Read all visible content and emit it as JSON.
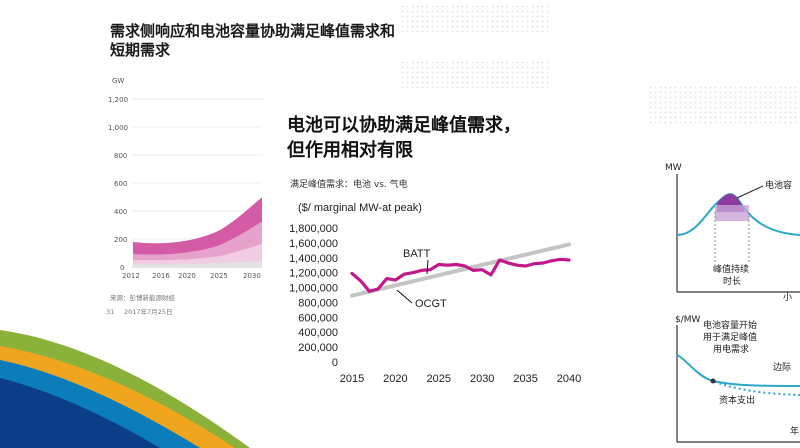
{
  "background_slide": {
    "title": "需求侧响应和电池容量协助满足峰值需求和短期需求",
    "left_chart": {
      "unit": "GW",
      "y_ticks": [
        "1,200",
        "1,000",
        "800",
        "600",
        "400",
        "200",
        "0"
      ],
      "x_ticks": [
        "2012",
        "2016",
        "2020",
        "2025",
        "2030"
      ],
      "source": "来源：彭博新能源财经",
      "footer_page": "31",
      "footer_date": "2017年7月25日"
    },
    "right_diagram": {
      "top_axis_label": "MW",
      "top_callout": "电池容",
      "duration_label_1": "峰值持续",
      "duration_label_2": "时长",
      "x_axis_cut": "小",
      "bottom_axis_label": "$/MW",
      "bottom_callout_1": "电池容量开始",
      "bottom_callout_2": "用于满足峰值",
      "bottom_callout_3": "用电需求",
      "edge_label": "边际",
      "capex_label": "资本支出",
      "year_label": "年"
    }
  },
  "main_panel": {
    "title_line1": "电池可以协助满足峰值需求，",
    "title_line2": "但作用相对有限"
  },
  "chart_data": {
    "type": "line",
    "subtitle": "满足峰值需求：电池 vs. 气电",
    "ylabel": "($/ marginal MW-at peak)",
    "xlabel": "",
    "xlim": [
      2015,
      2040
    ],
    "ylim": [
      0,
      1800000
    ],
    "x_ticks": [
      2015,
      2020,
      2025,
      2030,
      2035,
      2040
    ],
    "y_ticks": [
      0,
      200000,
      400000,
      600000,
      800000,
      1000000,
      1200000,
      1400000,
      1600000,
      1800000
    ],
    "y_tick_labels": [
      "0",
      "200,000",
      "400,000",
      "600,000",
      "800,000",
      "1,000,000",
      "1,200,000",
      "1,400,000",
      "1,600,000",
      "1,800,000"
    ],
    "x_tick_labels": [
      "2015",
      "2020",
      "2025",
      "2030",
      "2035",
      "2040"
    ],
    "series": [
      {
        "name": "BATT",
        "color": "#c2188b",
        "x": [
          2015,
          2016,
          2017,
          2018,
          2019,
          2020,
          2021,
          2022,
          2023,
          2024,
          2025,
          2026,
          2027,
          2028,
          2029,
          2030,
          2031,
          2032,
          2033,
          2034,
          2035,
          2036,
          2037,
          2038,
          2039,
          2040
        ],
        "values": [
          1190000,
          1090000,
          950000,
          980000,
          1120000,
          1100000,
          1180000,
          1200000,
          1230000,
          1240000,
          1310000,
          1300000,
          1310000,
          1290000,
          1230000,
          1240000,
          1170000,
          1370000,
          1330000,
          1300000,
          1290000,
          1320000,
          1330000,
          1360000,
          1380000,
          1370000
        ]
      },
      {
        "name": "OCGT",
        "color": "#c4c4c4",
        "x": [
          2015,
          2040
        ],
        "values": [
          890000,
          1580000
        ]
      }
    ]
  }
}
